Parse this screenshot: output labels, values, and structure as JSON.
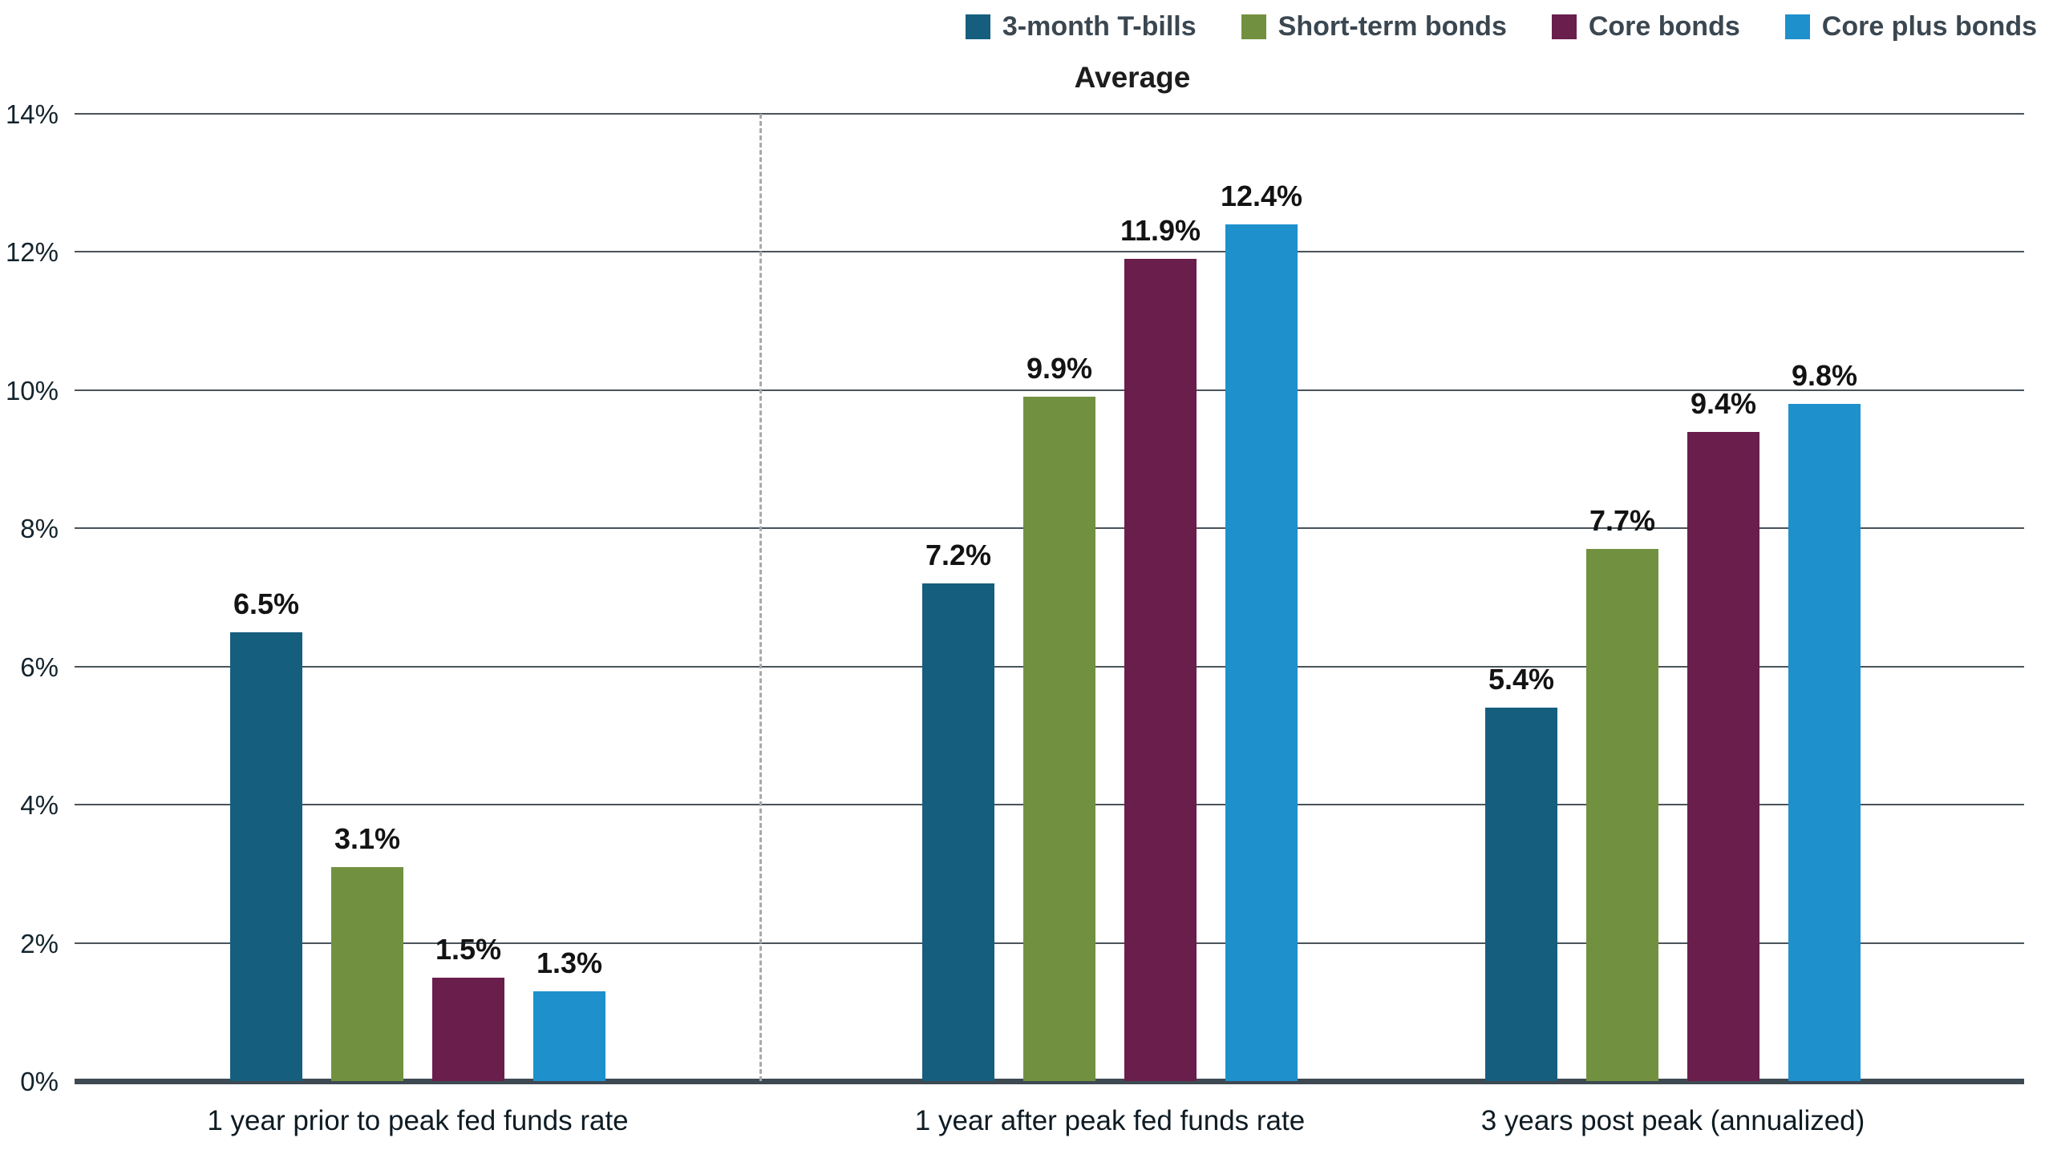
{
  "chart_data": {
    "type": "bar",
    "title": "Average",
    "categories": [
      "1 year prior to peak fed funds rate",
      "1 year after peak fed funds rate",
      "3 years post peak (annualized)"
    ],
    "series": [
      {
        "name": "3-month T-bills",
        "color": "#155e7e",
        "values": [
          6.5,
          7.2,
          5.4
        ]
      },
      {
        "name": "Short-term bonds",
        "color": "#729140",
        "values": [
          3.1,
          9.9,
          7.7
        ]
      },
      {
        "name": "Core bonds",
        "color": "#691e4c",
        "values": [
          1.5,
          11.9,
          9.4
        ]
      },
      {
        "name": "Core plus bonds",
        "color": "#1e90cc",
        "values": [
          1.3,
          12.4,
          9.8
        ]
      }
    ],
    "value_labels": [
      [
        "6.5%",
        "3.1%",
        "1.5%",
        "1.3%"
      ],
      [
        "7.2%",
        "9.9%",
        "11.9%",
        "12.4%"
      ],
      [
        "5.4%",
        "7.7%",
        "9.4%",
        "9.8%"
      ]
    ],
    "xlabel": "",
    "ylabel": "",
    "ylim": [
      0,
      14
    ],
    "ytick_step": 2,
    "ytick_labels": [
      "0%",
      "2%",
      "4%",
      "6%",
      "8%",
      "10%",
      "12%",
      "14%"
    ],
    "grid": true,
    "legend_position": "top-right",
    "separator_after_category_index": 0
  }
}
